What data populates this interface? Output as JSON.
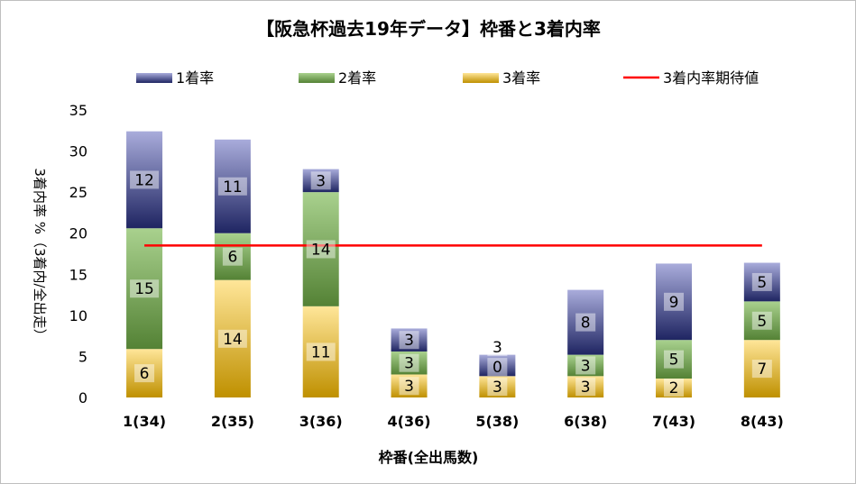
{
  "chart_data": {
    "type": "bar",
    "stacked": true,
    "title": "【阪急杯過去19年データ】枠番と3着内率",
    "xlabel": "枠番(全出馬数)",
    "ylabel": "3着内率 %（3着内/全出走）",
    "ylim": [
      0,
      35
    ],
    "yticks": [
      "0",
      "5",
      "10",
      "15",
      "20",
      "25",
      "30",
      "35"
    ],
    "categories": [
      "1(34)",
      "2(35)",
      "3(36)",
      "4(36)",
      "5(38)",
      "6(38)",
      "7(43)",
      "8(43)"
    ],
    "legend_position": "top",
    "series": [
      {
        "name": "3着率",
        "values": [
          5.9,
          14.3,
          11.1,
          2.8,
          2.6,
          2.6,
          2.3,
          7.0
        ],
        "labels": [
          "6",
          "14",
          "11",
          "3",
          "3",
          "3",
          "2",
          "7"
        ],
        "color_top": "#ffe699",
        "color_bottom": "#bf9000"
      },
      {
        "name": "2着率",
        "values": [
          14.7,
          5.7,
          13.9,
          2.8,
          0,
          2.6,
          4.7,
          4.7
        ],
        "labels": [
          "15",
          "6",
          "14",
          "3",
          "0",
          "3",
          "5",
          "5"
        ],
        "color_top": "#a9d18e",
        "color_bottom": "#548235"
      },
      {
        "name": "1着率",
        "values": [
          11.8,
          11.4,
          2.8,
          2.8,
          2.6,
          7.9,
          9.3,
          4.7
        ],
        "labels": [
          "12",
          "11",
          "3",
          "3",
          "3",
          "8",
          "9",
          "5"
        ],
        "color_top": "#a9acdb",
        "color_bottom": "#1f2562"
      }
    ],
    "legend_order": [
      "1着率",
      "2着率",
      "3着率",
      "3着内率期待値"
    ],
    "reference_line": {
      "name": "3着内率期待値",
      "value": 18.5,
      "color": "#ff0000"
    }
  }
}
